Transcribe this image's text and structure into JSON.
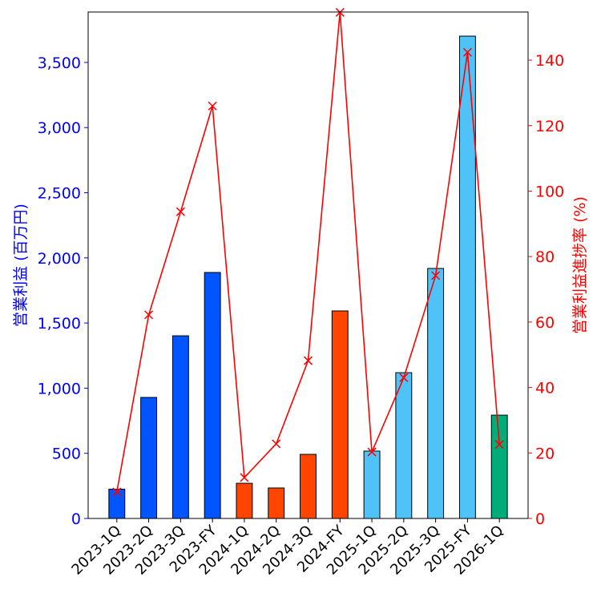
{
  "chart_data": {
    "type": "bar+line",
    "categories": [
      "2023-1Q",
      "2023-2Q",
      "2023-3Q",
      "2023-FY",
      "2024-1Q",
      "2024-2Q",
      "2024-3Q",
      "2024-FY",
      "2025-1Q",
      "2025-2Q",
      "2025-3Q",
      "2025-FY",
      "2026-1Q"
    ],
    "bar_series": {
      "values": [
        225,
        929,
        1402,
        1888,
        270,
        234,
        492,
        1593,
        517,
        1119,
        1919,
        3702,
        793
      ],
      "colors": [
        "#0055ff",
        "#0055ff",
        "#0055ff",
        "#0055ff",
        "#ff4500",
        "#ff4500",
        "#ff4500",
        "#ff4500",
        "#4fc3f7",
        "#4fc3f7",
        "#4fc3f7",
        "#4fc3f7",
        "#00ad78"
      ],
      "axis": "left"
    },
    "line_series": {
      "values": [
        8.1,
        62.2,
        93.7,
        126.0,
        12.5,
        22.8,
        48.2,
        154.6,
        20.3,
        43.0,
        74.2,
        142.4,
        22.6
      ],
      "color": "#ff0000",
      "marker": "x",
      "axis": "right"
    },
    "ylabel": "営業利益 (百万円)",
    "ylabel_right": "営業利益進捗率 (%)",
    "ylabel_color": "#0000ff",
    "ylabel_right_color": "#ff0000",
    "ylim": [
      0,
      3887
    ],
    "ylim_right": [
      0,
      154.7
    ],
    "yticks": [
      0,
      500,
      1000,
      1500,
      2000,
      2500,
      3000,
      3500
    ],
    "ytick_labels": [
      "0",
      "500",
      "1,000",
      "1,500",
      "2,000",
      "2,500",
      "3,000",
      "3,500"
    ],
    "yticks_right": [
      0,
      20,
      40,
      60,
      80,
      100,
      120,
      140
    ],
    "ytick_labels_right": [
      "0",
      "20",
      "40",
      "60",
      "80",
      "100",
      "120",
      "140"
    ],
    "grid": false
  }
}
